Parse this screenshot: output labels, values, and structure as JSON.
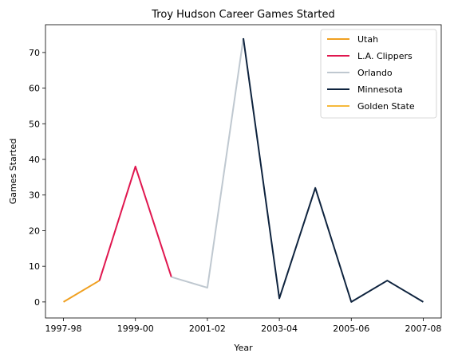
{
  "chart_data": {
    "type": "line",
    "title": "Troy Hudson Career Games Started",
    "xlabel": "Year",
    "ylabel": "Games Started",
    "x_categories": [
      "1997-98",
      "1998-99",
      "1999-00",
      "2000-01",
      "2001-02",
      "2002-03",
      "2003-04",
      "2004-05",
      "2005-06",
      "2006-07",
      "2007-08"
    ],
    "x_ticks": [
      "1997-98",
      "1999-00",
      "2001-02",
      "2003-04",
      "2005-06",
      "2007-08"
    ],
    "y_ticks": [
      0,
      10,
      20,
      30,
      40,
      50,
      60,
      70
    ],
    "ylim": [
      -4.5,
      77.8
    ],
    "grid": false,
    "legend_position": "top-right",
    "series": [
      {
        "name": "Utah",
        "color": "#f0a020",
        "points": [
          [
            "1997-98",
            0
          ],
          [
            "1998-99",
            6
          ]
        ]
      },
      {
        "name": "L.A. Clippers",
        "color": "#e0174f",
        "points": [
          [
            "1998-99",
            6
          ],
          [
            "1999-00",
            38
          ],
          [
            "2000-01",
            7
          ]
        ]
      },
      {
        "name": "Orlando",
        "color": "#bfc8d0",
        "points": [
          [
            "2000-01",
            7
          ],
          [
            "2001-02",
            4
          ],
          [
            "2002-03",
            74
          ]
        ]
      },
      {
        "name": "Minnesota",
        "color": "#0e233e",
        "points": [
          [
            "2002-03",
            74
          ],
          [
            "2003-04",
            1
          ],
          [
            "2004-05",
            32
          ],
          [
            "2005-06",
            0
          ],
          [
            "2006-07",
            6
          ],
          [
            "2007-08",
            0
          ]
        ]
      },
      {
        "name": "Golden State",
        "color": "#f6b93b",
        "points": []
      }
    ]
  }
}
